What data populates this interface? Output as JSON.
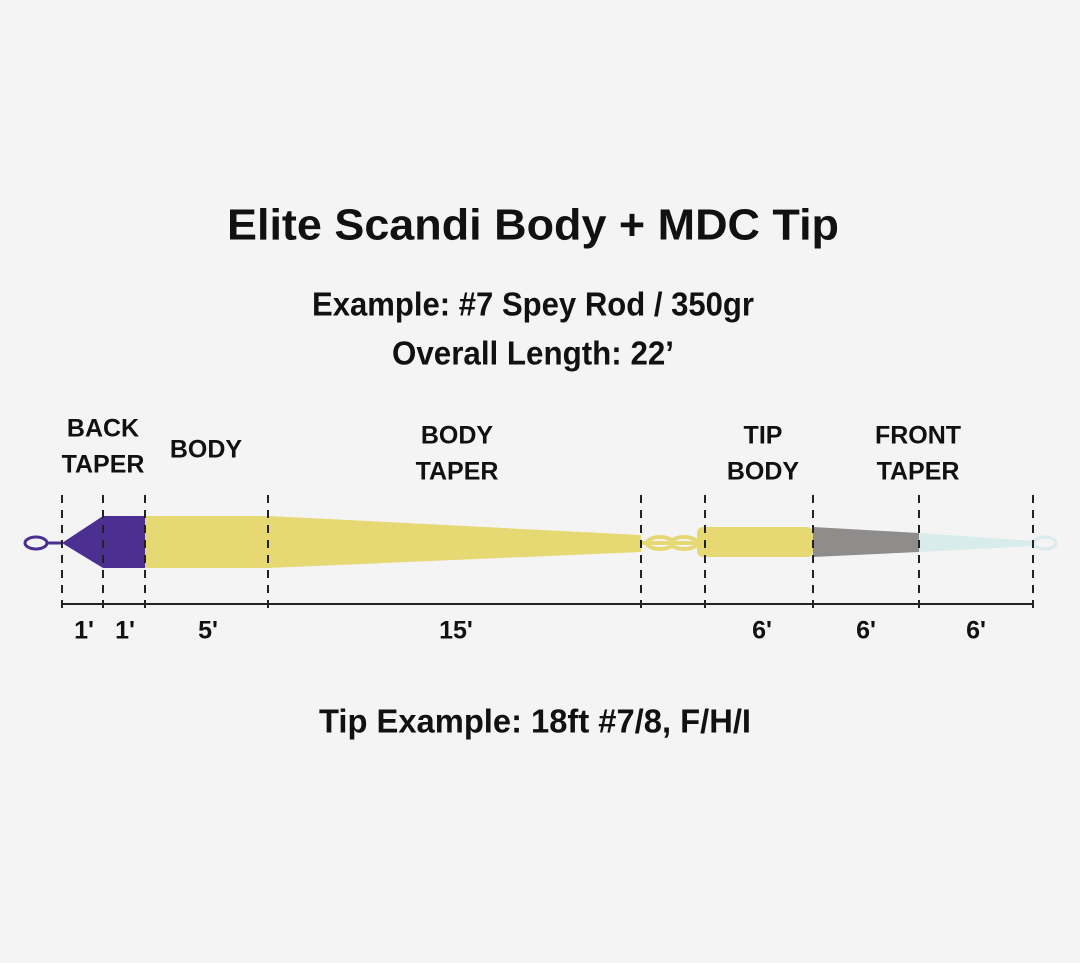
{
  "header": {
    "title": "Elite Scandi Body + MDC Tip",
    "lines": [
      "Example: #7 Spey Rod / 350gr",
      "Overall Length: 22’"
    ]
  },
  "sections": [
    {
      "label": [
        "BACK",
        "TAPER"
      ]
    },
    {
      "label": [
        "BODY"
      ]
    },
    {
      "label": [
        "BODY",
        "TAPER"
      ]
    },
    {
      "label": [
        "TIP",
        "BODY"
      ]
    },
    {
      "label": [
        "FRONT",
        "TAPER"
      ]
    }
  ],
  "lengths": [
    "1'",
    "1'",
    "5'",
    "15'",
    "6'",
    "6'",
    "6'"
  ],
  "footer": {
    "text": "Tip Example: 18ft #7/8, F/H/I"
  }
}
